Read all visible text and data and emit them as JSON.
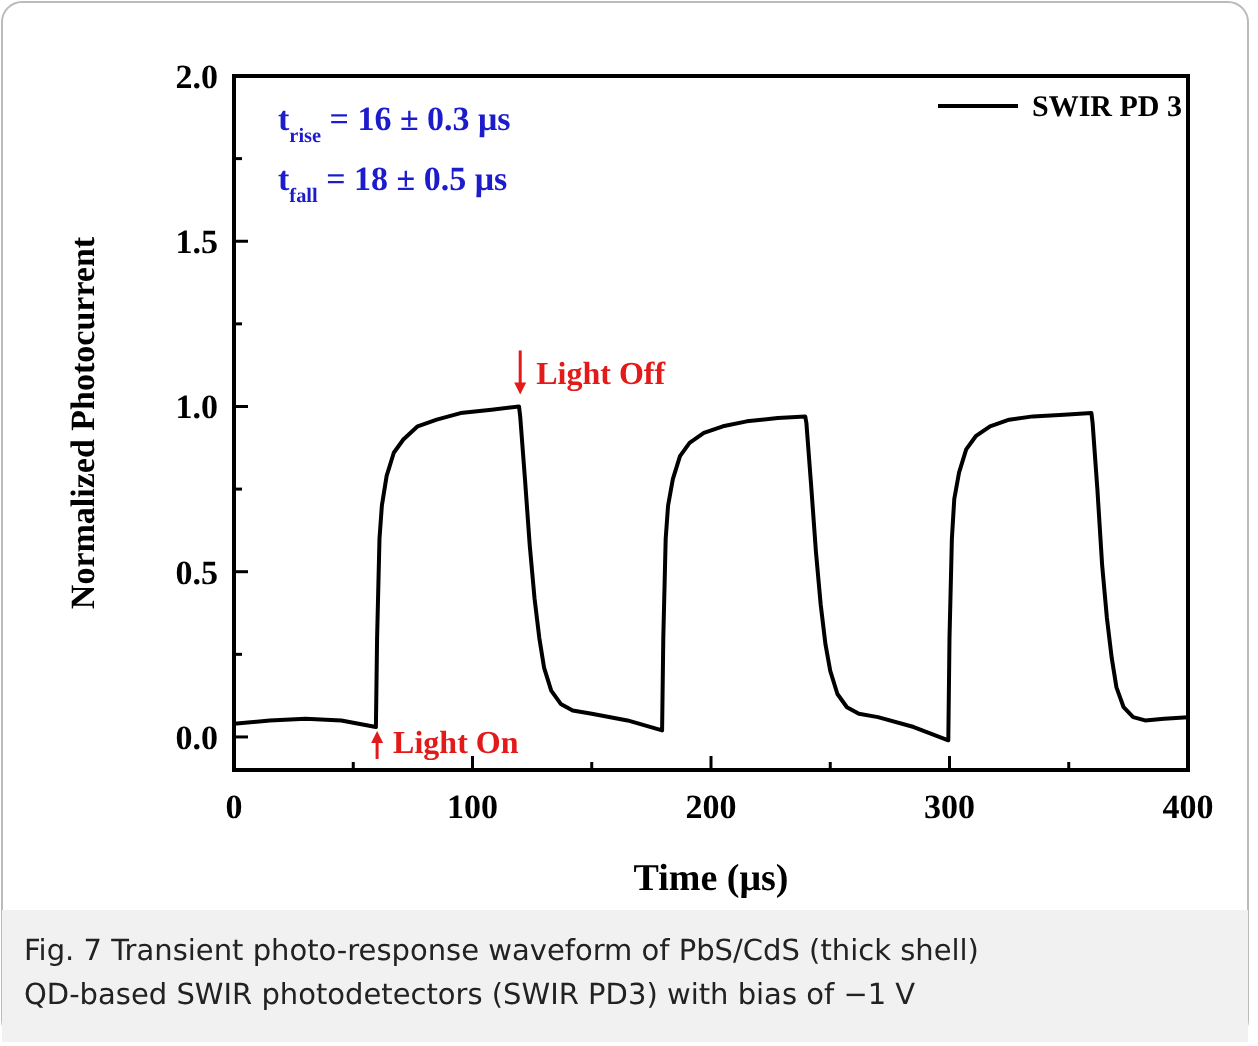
{
  "chart_data": {
    "type": "line",
    "xlabel": "Time (μs)",
    "ylabel": "Normalized Photocurrent",
    "xlim": [
      0,
      400
    ],
    "ylim": [
      -0.1,
      2.0
    ],
    "xticks": [
      0,
      {
        "value": 50,
        "label": null
      },
      100,
      {
        "value": 150,
        "label": null
      },
      200,
      {
        "value": 250,
        "label": null
      },
      300,
      {
        "value": 350,
        "label": null
      },
      400
    ],
    "yticks": [
      "0.0",
      {
        "value": 0.25,
        "label": null
      },
      {
        "value": 0.5,
        "label": "0.5"
      },
      {
        "value": 0.75,
        "label": null
      },
      {
        "value": 1.0,
        "label": "1.0"
      },
      {
        "value": 1.25,
        "label": null
      },
      {
        "value": 1.5,
        "label": "1.5"
      },
      {
        "value": 1.75,
        "label": null
      },
      {
        "value": 2.0,
        "label": "2.0"
      }
    ],
    "legend": "top right",
    "grid": false,
    "line_style": "solid",
    "series": [
      {
        "name": "SWIR PD 3",
        "color": "#000000",
        "x": [
          0,
          15,
          30,
          45,
          59.5,
          60,
          61,
          62,
          64,
          67,
          71,
          77,
          85,
          95,
          108,
          119.5,
          120,
          122,
          124,
          126,
          128,
          130,
          133,
          137,
          142,
          150,
          165,
          179.5,
          180,
          181,
          182,
          184,
          187,
          191,
          197,
          205,
          215,
          228,
          239.5,
          240,
          242,
          244,
          246,
          248,
          250,
          253,
          257,
          262,
          270,
          285,
          299.5,
          300,
          301,
          302,
          304,
          307,
          311,
          317,
          325,
          335,
          348,
          359.5,
          360,
          362,
          364,
          366,
          368,
          370,
          373,
          377,
          382,
          390,
          400
        ],
        "values": [
          0.04,
          0.05,
          0.055,
          0.05,
          0.03,
          0.3,
          0.6,
          0.7,
          0.79,
          0.86,
          0.9,
          0.94,
          0.96,
          0.98,
          0.99,
          1.0,
          0.97,
          0.78,
          0.58,
          0.42,
          0.3,
          0.21,
          0.14,
          0.1,
          0.08,
          0.07,
          0.05,
          0.02,
          0.3,
          0.6,
          0.7,
          0.78,
          0.85,
          0.89,
          0.92,
          0.94,
          0.955,
          0.965,
          0.97,
          0.95,
          0.76,
          0.56,
          0.4,
          0.28,
          0.2,
          0.13,
          0.09,
          0.07,
          0.06,
          0.03,
          -0.01,
          0.3,
          0.6,
          0.72,
          0.8,
          0.87,
          0.91,
          0.94,
          0.96,
          0.97,
          0.975,
          0.98,
          0.95,
          0.75,
          0.52,
          0.36,
          0.24,
          0.15,
          0.09,
          0.06,
          0.05,
          0.055,
          0.06
        ]
      }
    ],
    "annotations": [
      "t$_{rise}$ = 16 ± 0.3 μs",
      "t$_{fall}$ = 18 ± 0.5 μs",
      {
        "text": "Light Off",
        "x": 120,
        "y": 1.0
      },
      {
        "text": "Light On",
        "x": 60,
        "y": 0.03
      },
      "Fig. 7  Transient photo-response waveform of PbS/CdS (thick shell) QD-based SWIR photodetectors (SWIR PD3) with bias of −1 V"
    ]
  }
}
